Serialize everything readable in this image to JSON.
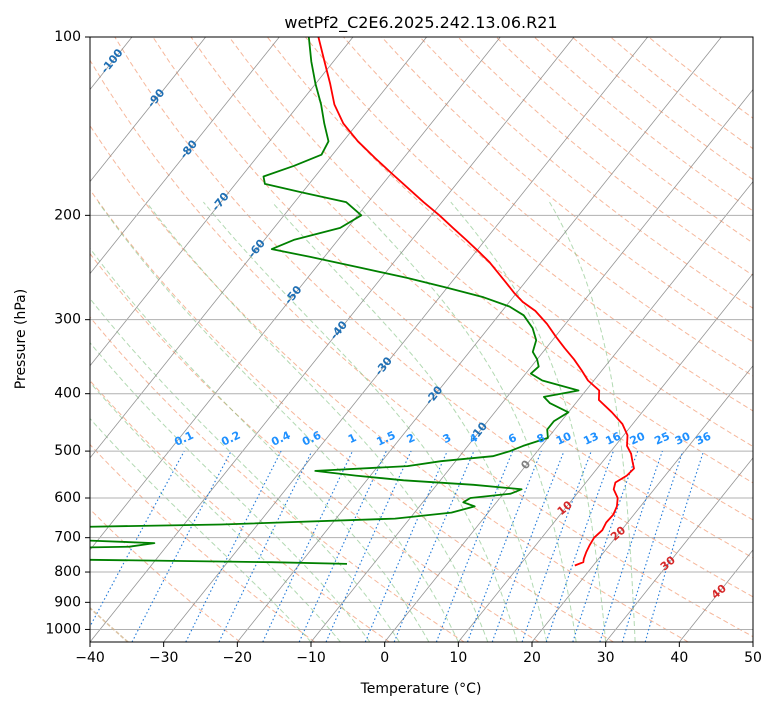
{
  "chart_data": {
    "type": "skew-t",
    "title": "wetPf2_C2E6.2025.242.13.06.R21",
    "xlabel": "Temperature (°C)",
    "ylabel": "Pressure (hPa)",
    "xlim": [
      -40,
      50
    ],
    "ylim": [
      1050,
      100
    ],
    "x_ticks": [
      -40,
      -30,
      -20,
      -10,
      0,
      10,
      20,
      30,
      40,
      50
    ],
    "x_tick_labels": [
      "−40",
      "−30",
      "−20",
      "−10",
      "0",
      "10",
      "20",
      "30",
      "40",
      "50"
    ],
    "y_ticks": [
      100,
      200,
      300,
      400,
      500,
      600,
      700,
      800,
      900,
      1000
    ],
    "y_tick_labels": [
      "100",
      "200",
      "300",
      "400",
      "500",
      "600",
      "700",
      "800",
      "900",
      "1000"
    ],
    "isotherm_labels": [
      {
        "text": "-100",
        "t": -100,
        "p": 110
      },
      {
        "text": "-90",
        "t": -90,
        "p": 127
      },
      {
        "text": "-80",
        "t": -80,
        "p": 155
      },
      {
        "text": "-70",
        "t": -70,
        "p": 190
      },
      {
        "text": "-60",
        "t": -60,
        "p": 228
      },
      {
        "text": "-50",
        "t": -50,
        "p": 273
      },
      {
        "text": "-40",
        "t": -40,
        "p": 313
      },
      {
        "text": "-30",
        "t": -30,
        "p": 360
      },
      {
        "text": "-20",
        "t": -20,
        "p": 403
      },
      {
        "text": "-10",
        "t": -10,
        "p": 464
      },
      {
        "text": "0",
        "t": 0,
        "p": 528
      }
    ],
    "dry_adiabat_labels": [
      {
        "text": "10",
        "t": 10,
        "p": 625
      },
      {
        "text": "20",
        "t": 20,
        "p": 690
      },
      {
        "text": "30",
        "t": 30,
        "p": 775
      },
      {
        "text": "40",
        "t": 40,
        "p": 865
      }
    ],
    "mixing_ratio_labels": [
      "0.1",
      "0.2",
      "0.4",
      "0.6",
      "1",
      "1.5",
      "2",
      "3",
      "4",
      "6",
      "8",
      "10",
      "13",
      "16",
      "20",
      "25",
      "30",
      "36"
    ],
    "temperature": {
      "name": "Temperature",
      "color": "#ff0000",
      "points": [
        [
          780,
          17.5
        ],
        [
          770,
          18.3
        ],
        [
          760,
          18.0
        ],
        [
          740,
          17.6
        ],
        [
          720,
          17.3
        ],
        [
          700,
          17.1
        ],
        [
          680,
          17.4
        ],
        [
          660,
          17.1
        ],
        [
          640,
          17.2
        ],
        [
          620,
          16.8
        ],
        [
          600,
          16.0
        ],
        [
          580,
          14.5
        ],
        [
          565,
          14.0
        ],
        [
          550,
          14.8
        ],
        [
          535,
          15.0
        ],
        [
          520,
          14.0
        ],
        [
          505,
          13.0
        ],
        [
          490,
          11.6
        ],
        [
          470,
          10.5
        ],
        [
          450,
          8.6
        ],
        [
          430,
          5.9
        ],
        [
          410,
          2.8
        ],
        [
          395,
          1.8
        ],
        [
          380,
          -0.8
        ],
        [
          365,
          -2.8
        ],
        [
          350,
          -5.0
        ],
        [
          335,
          -7.5
        ],
        [
          320,
          -10.0
        ],
        [
          305,
          -12.5
        ],
        [
          290,
          -15.5
        ],
        [
          280,
          -18.2
        ],
        [
          270,
          -20.4
        ],
        [
          260,
          -22.5
        ],
        [
          250,
          -24.7
        ],
        [
          240,
          -27.0
        ],
        [
          230,
          -29.7
        ],
        [
          220,
          -32.6
        ],
        [
          210,
          -35.7
        ],
        [
          200,
          -38.9
        ],
        [
          190,
          -42.5
        ],
        [
          180,
          -46.1
        ],
        [
          170,
          -49.9
        ],
        [
          160,
          -53.9
        ],
        [
          150,
          -58.0
        ],
        [
          140,
          -61.9
        ],
        [
          130,
          -65.2
        ],
        [
          120,
          -68.0
        ],
        [
          110,
          -71.2
        ],
        [
          100,
          -74.7
        ]
      ]
    },
    "dewpoint": {
      "name": "Dewpoint",
      "color": "#008000",
      "points": [
        [
          775,
          -13.6
        ],
        [
          770,
          -24.0
        ],
        [
          762,
          -52.0
        ],
        [
          756,
          -75.0
        ],
        [
          745,
          -90.0
        ],
        [
          735,
          -72.0
        ],
        [
          725,
          -45.0
        ],
        [
          715,
          -42.0
        ],
        [
          705,
          -55.0
        ],
        [
          695,
          -80.0
        ],
        [
          685,
          -105.0
        ],
        [
          675,
          -65.0
        ],
        [
          665,
          -35.0
        ],
        [
          650,
          -12.0
        ],
        [
          635,
          -5.0
        ],
        [
          620,
          -2.5
        ],
        [
          610,
          -4.5
        ],
        [
          600,
          -4.0
        ],
        [
          590,
          1.0
        ],
        [
          580,
          2.0
        ],
        [
          570,
          -5.0
        ],
        [
          560,
          -15.0
        ],
        [
          550,
          -22.0
        ],
        [
          540,
          -28.0
        ],
        [
          530,
          -16.0
        ],
        [
          520,
          -12.0
        ],
        [
          510,
          -5.5
        ],
        [
          500,
          -3.7
        ],
        [
          490,
          -2.5
        ],
        [
          475,
          0.0
        ],
        [
          460,
          -1.0
        ],
        [
          445,
          -1.0
        ],
        [
          430,
          0.0
        ],
        [
          415,
          -3.5
        ],
        [
          405,
          -5.0
        ],
        [
          395,
          -1.0
        ],
        [
          380,
          -7.0
        ],
        [
          370,
          -9.3
        ],
        [
          360,
          -9.0
        ],
        [
          350,
          -10.0
        ],
        [
          340,
          -11.4
        ],
        [
          325,
          -12.2
        ],
        [
          310,
          -14.0
        ],
        [
          295,
          -16.6
        ],
        [
          285,
          -19.5
        ],
        [
          275,
          -24.0
        ],
        [
          265,
          -30.0
        ],
        [
          255,
          -36.5
        ],
        [
          245,
          -44.0
        ],
        [
          235,
          -52.0
        ],
        [
          228,
          -58.0
        ],
        [
          220,
          -56.0
        ],
        [
          210,
          -51.0
        ],
        [
          200,
          -49.5
        ],
        [
          190,
          -53.0
        ],
        [
          183,
          -60.0
        ],
        [
          177,
          -66.0
        ],
        [
          172,
          -67.0
        ],
        [
          165,
          -64.0
        ],
        [
          158,
          -61.5
        ],
        [
          150,
          -62.0
        ],
        [
          140,
          -64.5
        ],
        [
          130,
          -67.0
        ],
        [
          120,
          -70.0
        ],
        [
          110,
          -73.0
        ],
        [
          100,
          -76.0
        ]
      ]
    }
  }
}
